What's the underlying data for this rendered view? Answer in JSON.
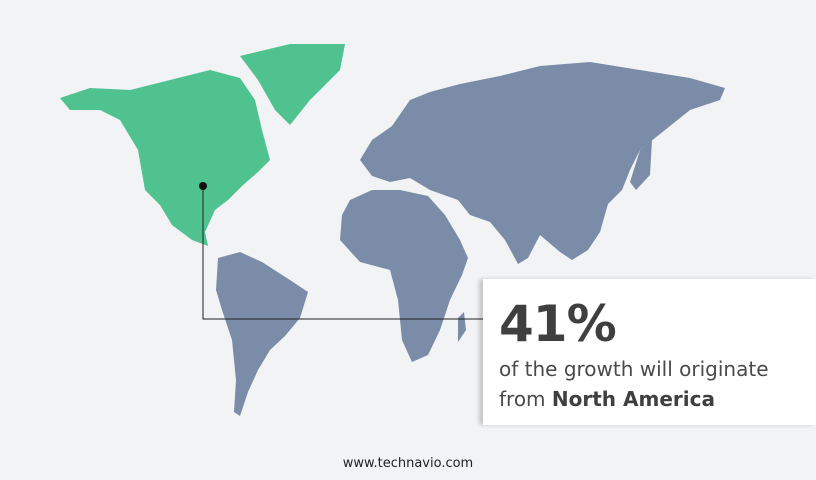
{
  "colors": {
    "highlight_region": "#4fc290",
    "other_regions": "#7a8ca8",
    "background": "#f2f3f5"
  },
  "highlight_region": "North America",
  "callout": {
    "value": "41%",
    "text_line1": "of the growth will originate",
    "text_line2_prefix": "from ",
    "region": "North America"
  },
  "footer": {
    "url": "www.technavio.com"
  }
}
